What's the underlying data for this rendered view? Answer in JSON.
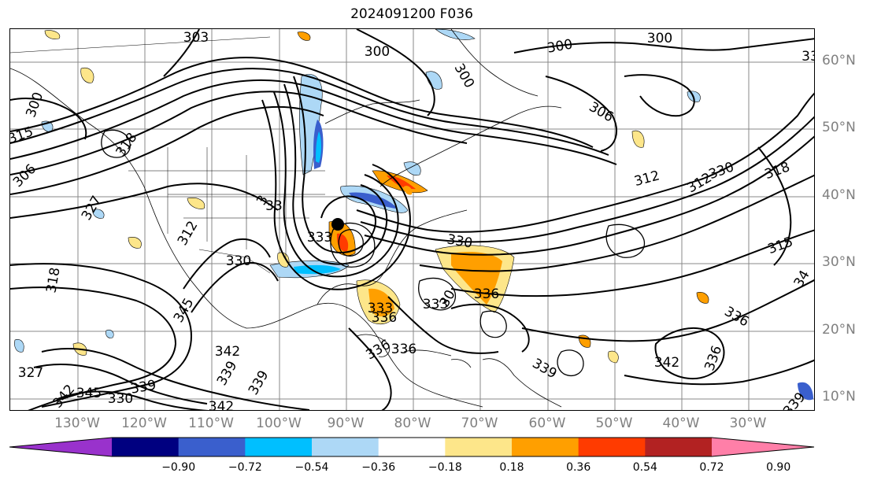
{
  "title": "2024091200 F036",
  "map": {
    "latitude_labels": [
      "60°N",
      "50°N",
      "40°N",
      "30°N",
      "20°N",
      "10°N"
    ],
    "longitude_labels": [
      "130°W",
      "120°W",
      "110°W",
      "100°W",
      "90°W",
      "80°W",
      "70°W",
      "60°W",
      "50°W",
      "40°W",
      "30°W"
    ],
    "contour_labels": [
      "303",
      "300",
      "300",
      "300",
      "300",
      "300",
      "306",
      "306",
      "315",
      "318",
      "312",
      "318",
      "312",
      "330",
      "327",
      "312",
      "315",
      "318",
      "330",
      "333",
      "330",
      "336",
      "336",
      "342",
      "336",
      "342",
      "339",
      "339",
      "339",
      "330",
      "345",
      "339",
      "342",
      "333",
      "336",
      "327",
      "342",
      "345",
      "336",
      "336",
      "339",
      "33",
      "34",
      "30",
      "3",
      "33",
      "333"
    ],
    "low_center_marker": "black-dot"
  },
  "colorbar": {
    "ticks": [
      "−0.90",
      "−0.72",
      "−0.54",
      "−0.36",
      "−0.18",
      "0.18",
      "0.36",
      "0.54",
      "0.72",
      "0.90"
    ],
    "colors": [
      "#9932cc",
      "#000080",
      "#3a5fcd",
      "#00bfff",
      "#add8f6",
      "#ffffff",
      "#fde68a",
      "#ff9f00",
      "#ff3b00",
      "#b22222",
      "#ff7fa8"
    ]
  }
}
